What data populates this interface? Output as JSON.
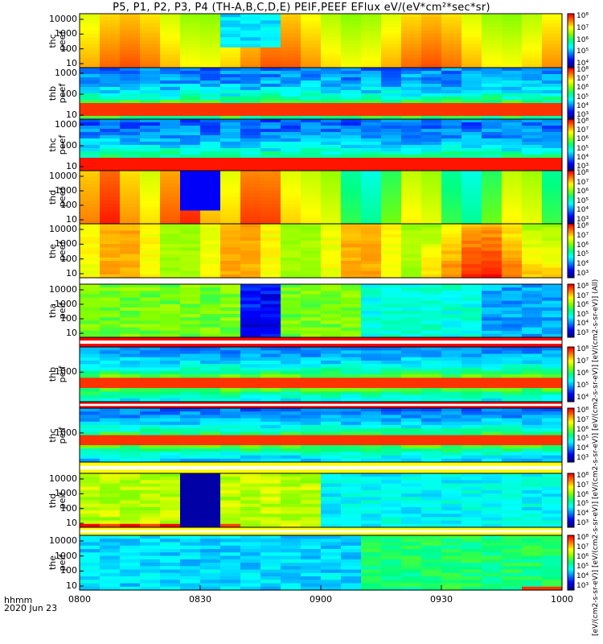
{
  "title": "P5, P1, P2, P3, P4 (TH-A,B,C,D,E) PEIF,PEEF EFlux eV/(eV*cm²*sec*sr)",
  "x_axis": {
    "ticks": [
      "0800",
      "0830",
      "0900",
      "0930",
      "1000"
    ],
    "unit_label": "hhmm",
    "date_label": "2020 Jun 23"
  },
  "colorbar_title": "[eV/(cm2-s-sr-eV)] [eV/(cm2-s-sr-eV)] [eV/(cm2-s-sr-eV)] [eV/(cm2-s-sr-eV)] [eV/(cm2-s-sr-eV)] (All)",
  "colors": {
    "colormap": [
      "#00008b",
      "#0000ff",
      "#0080ff",
      "#00ffff",
      "#00ff80",
      "#80ff00",
      "#ffff00",
      "#ff8000",
      "#ff0000"
    ]
  },
  "chart_data": [
    {
      "type": "heatmap",
      "probe": "thc",
      "species": "peef",
      "ylabel": "thc peef",
      "yscale": "log",
      "yticks": [
        "10",
        "100",
        "1000",
        "10000"
      ],
      "cbar_ticks": [
        "10⁸",
        "10⁷",
        "10⁶",
        "10⁵",
        "10⁴"
      ],
      "x": [
        "0800",
        "1000"
      ],
      "pattern": "energy-time spectrogram, warm (yellow-red) band with cold gap near 0836-0845"
    },
    {
      "type": "heatmap",
      "probe": "thb",
      "species": "peef",
      "ylabel": "thb peef",
      "yscale": "log",
      "yticks": [
        "10",
        "100",
        "1000"
      ],
      "cbar_ticks": [
        "10⁸",
        "10⁷",
        "10⁶",
        "10⁵",
        "10⁴",
        "10³"
      ],
      "x": [
        "0800",
        "1000"
      ],
      "pattern": "horizontal bands, red peak near 10-30 eV"
    },
    {
      "type": "heatmap",
      "probe": "thc",
      "species": "peef",
      "ylabel": "thc peef",
      "yscale": "log",
      "yticks": [
        "10",
        "100",
        "1000"
      ],
      "cbar_ticks": [
        "10⁸",
        "10⁷",
        "10⁶",
        "10⁵",
        "10⁴",
        "10³"
      ],
      "x": [
        "0800",
        "1000"
      ],
      "pattern": "horizontal bands, red peak near 10 eV"
    },
    {
      "type": "heatmap",
      "probe": "thd",
      "species": "peef",
      "ylabel": "thd peef",
      "yscale": "log",
      "yticks": [
        "10",
        "100",
        "1000",
        "10000"
      ],
      "cbar_ticks": [
        "10⁸",
        "10⁷",
        "10⁶",
        "10⁵",
        "10⁴",
        "10³"
      ],
      "x": [
        "0800",
        "1000"
      ],
      "pattern": "red-orange early, cold column near 0826, green-cyan later"
    },
    {
      "type": "heatmap",
      "probe": "the",
      "species": "peef",
      "ylabel": "the peef",
      "yscale": "log",
      "yticks": [
        "10",
        "100",
        "1000",
        "10000"
      ],
      "cbar_ticks": [
        "10⁸",
        "10⁷",
        "10⁶",
        "10⁵",
        "10⁴",
        "10³"
      ],
      "x": [
        "0800",
        "1000"
      ],
      "pattern": "yellow-orange throughout, red enhancement late (0940-0955)"
    },
    {
      "type": "heatmap",
      "probe": "tha",
      "species": "peif",
      "ylabel": "tha peif",
      "yscale": "log",
      "yticks": [
        "10",
        "100",
        "1000",
        "10000"
      ],
      "cbar_ticks": [
        "10⁸",
        "10⁷",
        "10⁶",
        "10⁵",
        "10⁴",
        "10³"
      ],
      "x": [
        "0800",
        "1000"
      ],
      "pattern": "green early, dark blue/black column near 0836-0845, blue later"
    },
    {
      "type": "heatmap",
      "probe": "thb",
      "species": "peif",
      "ylabel": "thb peif",
      "yscale": "log",
      "yticks": [
        "1000"
      ],
      "cbar_ticks": [
        "10⁸",
        "10⁷",
        "10⁶",
        "10⁵",
        "10⁴"
      ],
      "x": [
        "0800",
        "1000"
      ],
      "pattern": "horizontal bands, red core band"
    },
    {
      "type": "heatmap",
      "probe": "thc",
      "species": "peif",
      "ylabel": "thc peif",
      "yscale": "log",
      "yticks": [
        "1000"
      ],
      "cbar_ticks": [
        "10⁸",
        "10⁷",
        "10⁶",
        "10⁵",
        "10⁴",
        "10³"
      ],
      "x": [
        "0800",
        "1000"
      ],
      "pattern": "horizontal bands, red core band"
    },
    {
      "type": "heatmap",
      "probe": "thd",
      "species": "peif",
      "ylabel": "thd peif",
      "yscale": "log",
      "yticks": [
        "10",
        "100",
        "1000",
        "10000"
      ],
      "cbar_ticks": [
        "10⁸",
        "10⁷",
        "10⁶",
        "10⁵",
        "10⁴",
        "10³"
      ],
      "x": [
        "0800",
        "1000"
      ],
      "pattern": "yellow-green early, black column near 0822-0830, blue later"
    },
    {
      "type": "heatmap",
      "probe": "the",
      "species": "peif",
      "ylabel": "the peif",
      "yscale": "log",
      "yticks": [
        "10",
        "100",
        "1000",
        "10000"
      ],
      "cbar_ticks": [
        "10⁸",
        "10⁷",
        "10⁶",
        "10⁵",
        "10⁴",
        "10³"
      ],
      "x": [
        "0800",
        "1000"
      ],
      "pattern": "blue early, green later, red at lowest energies near 0955"
    }
  ]
}
